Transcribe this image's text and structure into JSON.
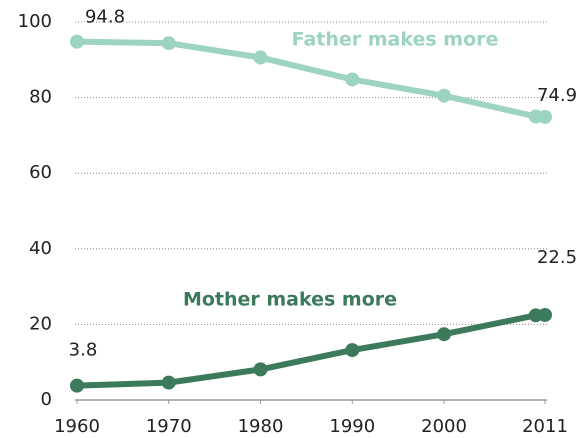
{
  "chart_data": {
    "type": "line",
    "x": [
      1960,
      1970,
      1980,
      1990,
      2000,
      2010,
      2011
    ],
    "series": [
      {
        "name": "Father makes more",
        "color": "#9dd3c2",
        "values": [
          94.8,
          94.4,
          90.6,
          84.8,
          80.5,
          75.0,
          74.9
        ],
        "value_labels": [
          "94.8",
          null,
          null,
          null,
          null,
          null,
          "74.9"
        ]
      },
      {
        "name": "Mother makes more",
        "color": "#3b7a5b",
        "values": [
          3.8,
          4.6,
          8.1,
          13.2,
          17.4,
          22.4,
          22.5
        ],
        "value_labels": [
          "3.8",
          null,
          null,
          null,
          null,
          null,
          "22.5"
        ]
      }
    ],
    "xlim": [
      1960,
      2011
    ],
    "xticks": [
      1960,
      1970,
      1980,
      1990,
      2000,
      2011
    ],
    "ylim": [
      0,
      100
    ],
    "yticks": [
      0,
      20,
      40,
      60,
      80,
      100
    ],
    "grid": true
  }
}
